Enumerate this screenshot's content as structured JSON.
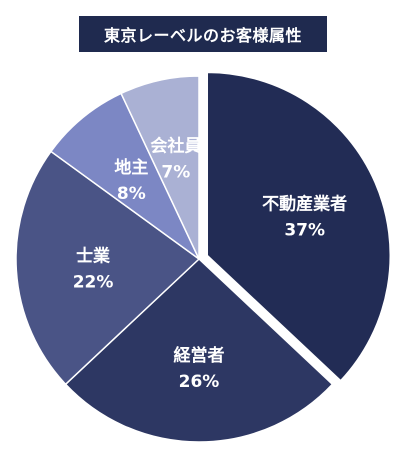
{
  "chart_data": {
    "type": "pie",
    "title": "東京レーベルのお客様属性",
    "slices": [
      {
        "label": "不動産業者",
        "value": 37,
        "value_label": "37%",
        "color": "#222c55"
      },
      {
        "label": "経営者",
        "value": 26,
        "value_label": "26%",
        "color": "#2d3763"
      },
      {
        "label": "士業",
        "value": 22,
        "value_label": "22%",
        "color": "#4a5486"
      },
      {
        "label": "地主",
        "value": 8,
        "value_label": "8%",
        "color": "#7c87c4"
      },
      {
        "label": "会社員",
        "value": 7,
        "value_label": "7%",
        "color": "#aab1d4"
      }
    ],
    "exploded": "不動産業者",
    "legend": "none"
  }
}
